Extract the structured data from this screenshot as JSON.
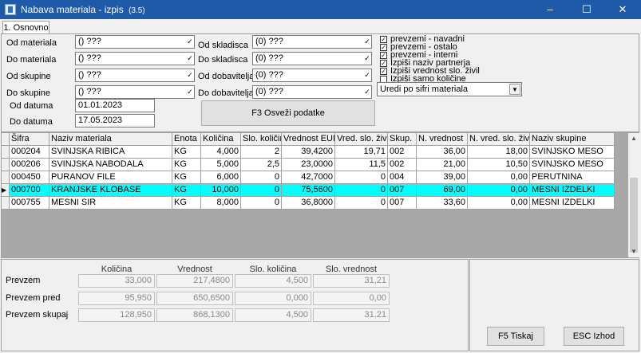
{
  "window": {
    "title": "Nabava materiala - izpis",
    "version": "(3.5)"
  },
  "tab": {
    "label": "1. Osnovno"
  },
  "filters": {
    "od_materiala_label": "Od materiala",
    "od_materiala_value": "() ???",
    "do_materiala_label": "Do materiala",
    "do_materiala_value": "() ???",
    "od_skupine_label": "Od skupine",
    "od_skupine_value": "() ???",
    "do_skupine_label": "Do skupine",
    "do_skupine_value": "() ???",
    "od_skladisca_label": "Od skladisca",
    "od_skladisca_value": "(0) ???",
    "do_skladisca_label": "Do skladisca",
    "do_skladisca_value": "(0) ???",
    "od_dobavitelja_label": "Od dobavitelja",
    "od_dobavitelja_value": "(0) ???",
    "do_dobavitelja_label": "Do dobavitelja",
    "do_dobavitelja_value": "(0) ???",
    "od_datuma_label": "Od datuma",
    "od_datuma_value": "01.01.2023",
    "do_datuma_label": "Do datuma",
    "do_datuma_value": "17.05.2023",
    "refresh_label": "F3 Osveži podatke"
  },
  "options": {
    "checkboxes": [
      {
        "label": "prevzemi - navadni",
        "checked": true
      },
      {
        "label": "prevzemi - ostalo",
        "checked": true
      },
      {
        "label": "prevzemi - interni",
        "checked": true
      },
      {
        "label": "Izpiši naziv partnerja",
        "checked": true
      },
      {
        "label": "Izpiši vrednost slo. živil",
        "checked": true
      },
      {
        "label": "Izpiši samo količine",
        "checked": false
      }
    ],
    "sort_value": "Uredi po sifri materiala"
  },
  "grid": {
    "columns": [
      "Šifra",
      "Naziv materiala",
      "Enota",
      "Količina",
      "Slo. količina",
      "Vrednost EUR",
      "Vred. slo. živil",
      "Skup.",
      "N. vrednost",
      "N. vred. slo. živil",
      "Naziv skupine"
    ],
    "rows": [
      [
        "000204",
        "SVINJSKA RIBICA",
        "KG",
        "4,000",
        "2",
        "39,4200",
        "19,71",
        "002",
        "36,00",
        "18,00",
        "SVINJSKO MESO"
      ],
      [
        "000206",
        "SVINJSKA NABODALA",
        "KG",
        "5,000",
        "2,5",
        "23,0000",
        "11,5",
        "002",
        "21,00",
        "10,50",
        "SVINJSKO MESO"
      ],
      [
        "000450",
        "PURANOV FILE",
        "KG",
        "6,000",
        "0",
        "42,7000",
        "0",
        "004",
        "39,00",
        "0,00",
        "PERUTNINA"
      ],
      [
        "000700",
        "KRANJSKE KLOBASE",
        "KG",
        "10,000",
        "0",
        "75,5600",
        "0",
        "007",
        "69,00",
        "0,00",
        "MESNI IZDELKI"
      ],
      [
        "000755",
        "MESNI SIR",
        "KG",
        "8,000",
        "0",
        "36,8000",
        "0",
        "007",
        "33,60",
        "0,00",
        "MESNI IZDELKI"
      ]
    ],
    "selected_index": 3,
    "selected_color": "#00ffff"
  },
  "summary": {
    "headers": [
      "Količina",
      "Vrednost",
      "Slo. količina",
      "Slo. vrednost"
    ],
    "rows": [
      {
        "label": "Prevzem",
        "values": [
          "33,000",
          "217,4800",
          "4,500",
          "31,21"
        ]
      },
      {
        "label": "Prevzem pred",
        "values": [
          "95,950",
          "650,6500",
          "0,000",
          "0,00"
        ]
      },
      {
        "label": "Prevzem skupaj",
        "values": [
          "128,950",
          "868,1300",
          "4,500",
          "31,21"
        ]
      }
    ]
  },
  "actions": {
    "print_label": "F5 Tiskaj",
    "exit_label": "ESC Izhod"
  },
  "colors": {
    "titlebar": "#1e5aa8",
    "selection": "#00ffff"
  }
}
